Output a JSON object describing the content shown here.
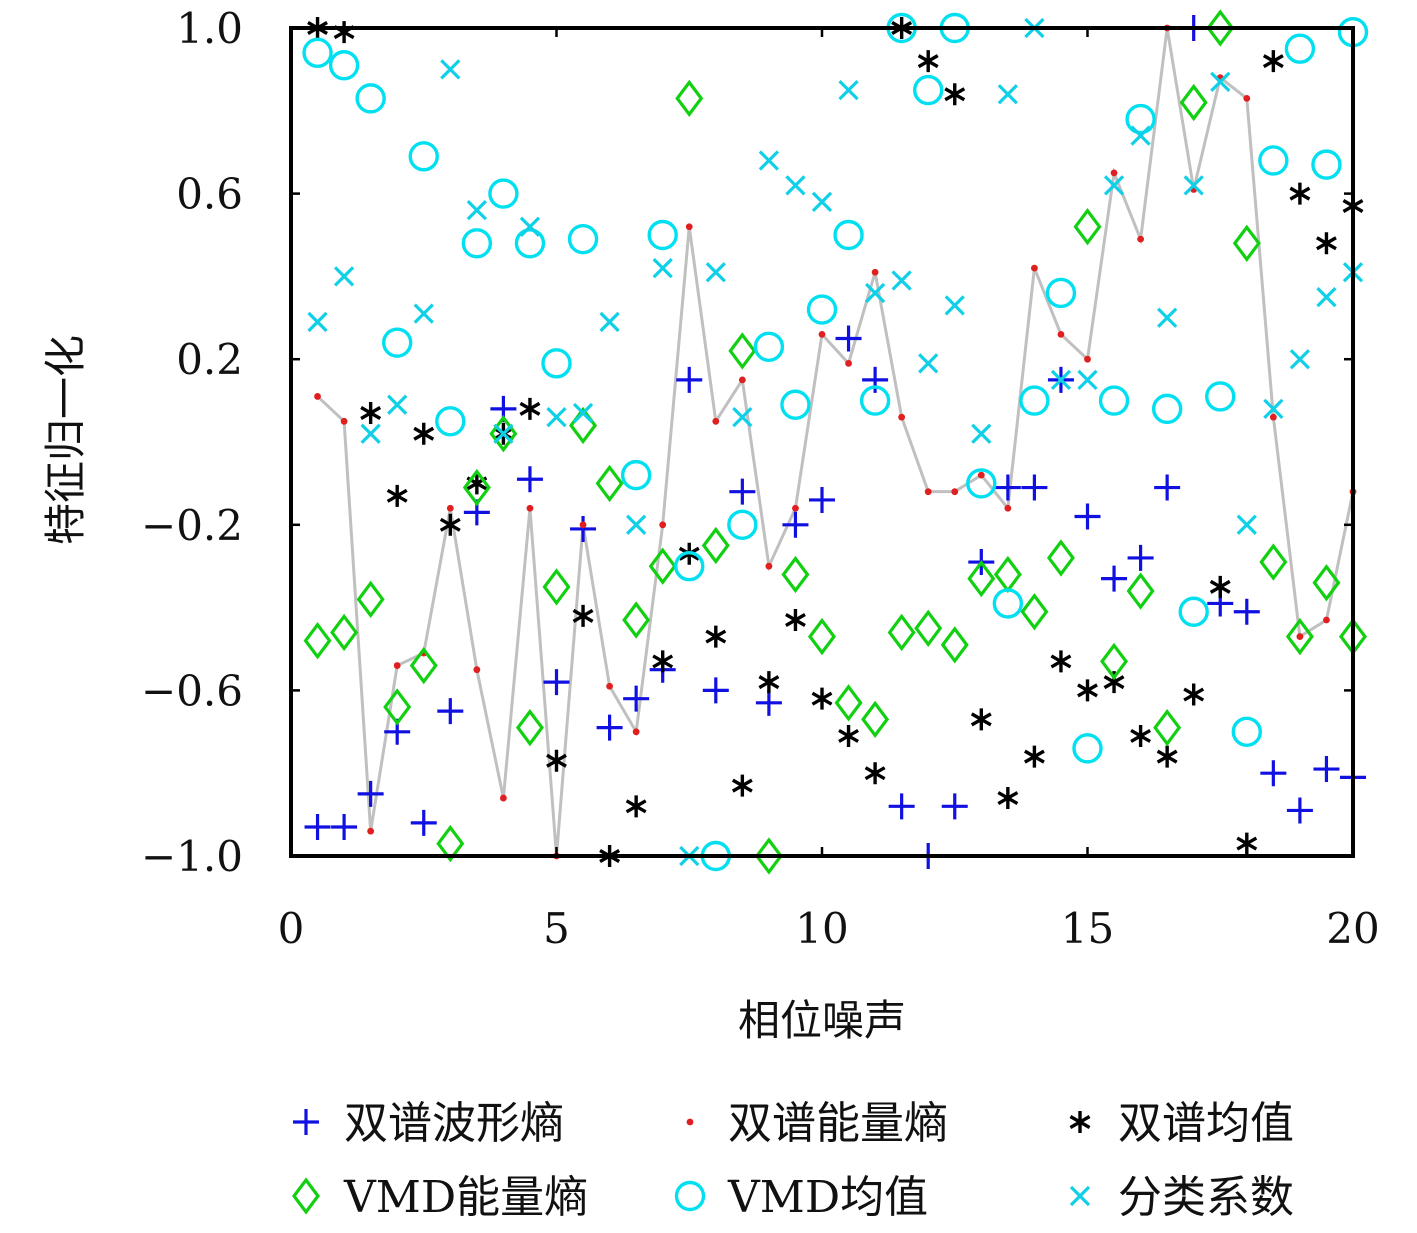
{
  "chart_data": {
    "type": "scatter",
    "xlabel": "相位噪声",
    "ylabel": "特征归一化",
    "xlim": [
      0,
      20
    ],
    "ylim": [
      -1.0,
      1.0
    ],
    "x_ticks": [
      "0",
      "5",
      "10",
      "15",
      "20"
    ],
    "y_ticks": [
      "1.0",
      "0.6",
      "0.2",
      "−0.2",
      "−0.6",
      "−1.0"
    ],
    "grid": false,
    "legend_position": "bottom",
    "x": [
      0.5,
      1.0,
      1.5,
      2.0,
      2.5,
      3.0,
      3.5,
      4.0,
      4.5,
      5.0,
      5.5,
      6.0,
      6.5,
      7.0,
      7.5,
      8.0,
      8.5,
      9.0,
      9.5,
      10.0,
      10.5,
      11.0,
      11.5,
      12.0,
      12.5,
      13.0,
      13.5,
      14.0,
      14.5,
      15.0,
      15.5,
      16.0,
      16.5,
      17.0,
      17.5,
      18.0,
      18.5,
      19.0,
      19.5,
      20.0
    ],
    "series": [
      {
        "name": "双谱波形熵",
        "marker": "plus",
        "color": "#1010e0",
        "values": [
          -0.93,
          -0.93,
          -0.85,
          -0.7,
          -0.92,
          -0.65,
          -0.17,
          0.08,
          -0.09,
          -0.58,
          -0.21,
          -0.69,
          -0.62,
          -0.55,
          0.15,
          -0.6,
          -0.12,
          -0.63,
          -0.2,
          -0.14,
          0.25,
          0.15,
          -0.88,
          -1.0,
          -0.88,
          -0.29,
          -0.11,
          -0.11,
          0.15,
          -0.18,
          -0.33,
          -0.28,
          -0.11,
          1.0,
          -0.39,
          -0.41,
          -0.8,
          -0.89,
          -0.79,
          -0.81
        ]
      },
      {
        "name": "双谱能量熵",
        "marker": "dot",
        "color": "#e02020",
        "line_color": "#c0c0c0",
        "values": [
          0.11,
          0.05,
          -0.94,
          -0.54,
          -0.51,
          -0.16,
          -0.55,
          -0.86,
          -0.16,
          -1.0,
          -0.2,
          -0.59,
          -0.7,
          -0.2,
          0.52,
          0.05,
          0.15,
          -0.3,
          -0.16,
          0.26,
          0.19,
          0.41,
          0.06,
          -0.12,
          -0.12,
          -0.08,
          -0.16,
          0.42,
          0.26,
          0.2,
          0.65,
          0.49,
          1.0,
          0.61,
          0.88,
          0.83,
          0.06,
          -0.47,
          -0.43,
          -0.12
        ]
      },
      {
        "name": "双谱均值",
        "marker": "asterisk",
        "color": "#000000",
        "values": [
          1.0,
          0.99,
          0.07,
          -0.13,
          0.02,
          -0.2,
          -0.1,
          0.02,
          0.08,
          -0.77,
          -0.42,
          -1.0,
          -0.88,
          -0.53,
          -0.27,
          -0.47,
          -0.83,
          -0.58,
          -0.43,
          -0.62,
          -0.71,
          -0.8,
          1.0,
          0.92,
          0.84,
          -0.67,
          -0.86,
          -0.76,
          -0.53,
          -0.6,
          -0.58,
          -0.71,
          -0.76,
          -0.61,
          -0.35,
          -0.97,
          0.92,
          0.6,
          0.48,
          0.57
        ]
      },
      {
        "name": "VMD能量熵",
        "marker": "diamond",
        "color": "#10d010",
        "values": [
          -0.48,
          -0.46,
          -0.38,
          -0.64,
          -0.54,
          -0.97,
          -0.11,
          0.02,
          -0.69,
          -0.35,
          0.04,
          -0.1,
          -0.43,
          -0.3,
          0.83,
          -0.25,
          0.22,
          -1.0,
          -0.32,
          -0.47,
          -0.63,
          -0.67,
          -0.46,
          -0.45,
          -0.49,
          -0.33,
          -0.32,
          -0.41,
          -0.28,
          0.52,
          -0.53,
          -0.36,
          -0.69,
          0.82,
          1.0,
          0.48,
          -0.29,
          -0.47,
          -0.34,
          -0.47
        ]
      },
      {
        "name": "VMD均值",
        "marker": "circle",
        "color": "#00e0f0",
        "values": [
          0.94,
          0.91,
          0.83,
          0.24,
          0.69,
          0.05,
          0.48,
          0.6,
          0.48,
          0.19,
          0.49,
          null,
          -0.08,
          0.5,
          -0.3,
          -1.0,
          -0.2,
          0.23,
          0.09,
          0.32,
          0.5,
          0.1,
          1.0,
          0.85,
          1.0,
          -0.1,
          -0.39,
          0.1,
          0.36,
          -0.74,
          0.1,
          0.78,
          0.08,
          -0.41,
          0.11,
          -0.7,
          0.68,
          0.95,
          0.67,
          0.99
        ]
      },
      {
        "name": "分类系数",
        "marker": "cross",
        "color": "#10d0e8",
        "values": [
          0.29,
          0.4,
          0.02,
          0.09,
          0.31,
          0.9,
          0.56,
          0.02,
          0.52,
          0.06,
          0.07,
          0.29,
          -0.2,
          0.42,
          -1.0,
          0.41,
          0.06,
          0.68,
          0.62,
          0.58,
          0.85,
          0.36,
          0.39,
          0.19,
          0.33,
          0.02,
          0.84,
          1.0,
          0.15,
          0.15,
          0.62,
          0.74,
          0.3,
          0.62,
          0.87,
          -0.2,
          0.08,
          0.2,
          0.35,
          0.41
        ]
      }
    ]
  }
}
